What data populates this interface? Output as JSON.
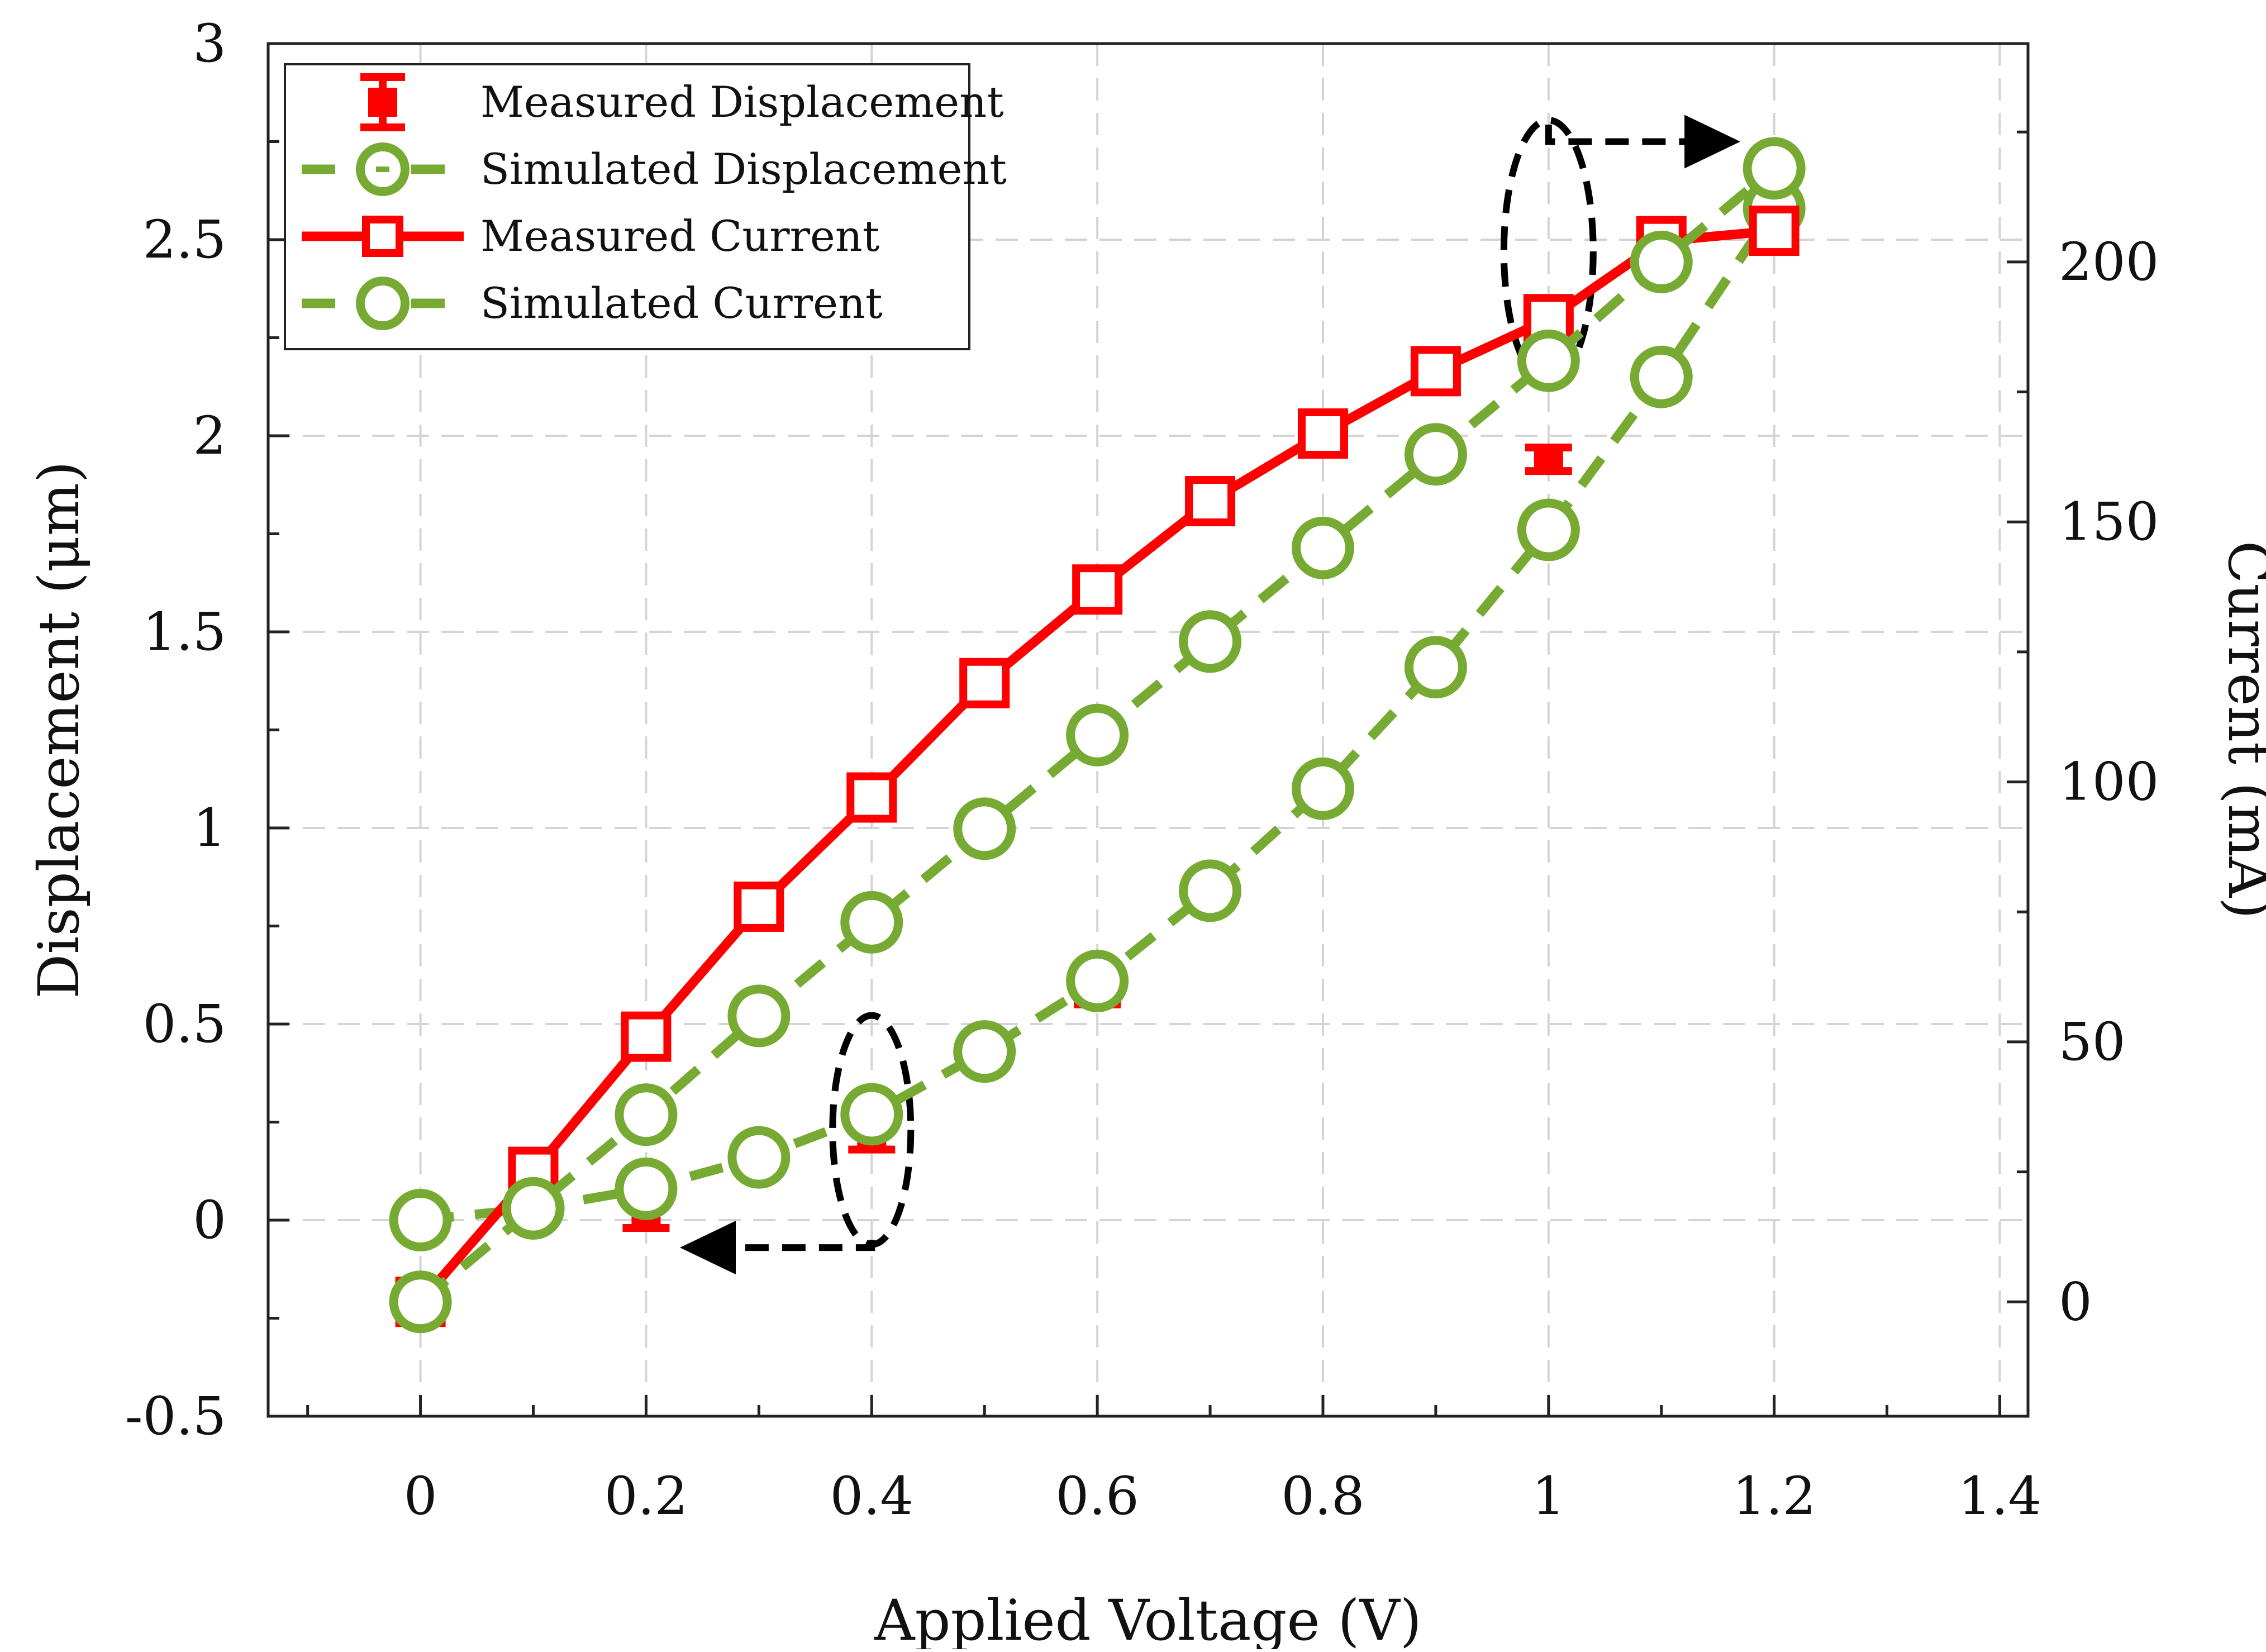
{
  "chart_data": {
    "type": "line",
    "title": "",
    "xlabel": "Applied Voltage (V)",
    "ylabel": "Displacement (μm)",
    "y2label": "Current (mA)",
    "xlim": [
      -0.135,
      1.425
    ],
    "ylim": [
      -0.5,
      3.0
    ],
    "y2lim": [
      -22,
      242
    ],
    "xticks": [
      0,
      0.2,
      0.4,
      0.6,
      0.8,
      1,
      1.2,
      1.4
    ],
    "xtick_labels": [
      "0",
      "0.2",
      "0.4",
      "0.6",
      "0.8",
      "1",
      "1.2",
      "1.4"
    ],
    "yticks": [
      -0.5,
      0,
      0.5,
      1,
      1.5,
      2,
      2.5,
      3
    ],
    "ytick_labels": [
      "-0.5",
      "0",
      "0.5",
      "1",
      "1.5",
      "2",
      "2.5",
      "3"
    ],
    "y2ticks": [
      0,
      50,
      100,
      150,
      200
    ],
    "y2tick_labels": [
      "0",
      "50",
      "100",
      "150",
      "200"
    ],
    "grid": true,
    "legend_position": "top-left",
    "series": [
      {
        "name": "Measured Displacement",
        "axis": "left",
        "style": "errorbar",
        "color": "#ff0000",
        "x": [
          0,
          0.2,
          0.4,
          0.6,
          0.8,
          1.0,
          1.2
        ],
        "y": [
          0.0,
          0.02,
          0.21,
          0.59,
          1.1,
          1.94,
          2.55
        ],
        "err": [
          0.02,
          0.04,
          0.03,
          0.04,
          0.03,
          0.03,
          0.06
        ]
      },
      {
        "name": "Simulated Displacement",
        "axis": "left",
        "style": "dashed-circle",
        "color": "#77aa33",
        "x": [
          0,
          0.1,
          0.2,
          0.3,
          0.4,
          0.5,
          0.6,
          0.7,
          0.8,
          0.9,
          1.0,
          1.1,
          1.2
        ],
        "y": [
          0.0,
          0.03,
          0.08,
          0.16,
          0.27,
          0.43,
          0.61,
          0.84,
          1.1,
          1.41,
          1.76,
          2.15,
          2.58
        ]
      },
      {
        "name": "Measured Current",
        "axis": "right",
        "style": "solid-square",
        "color": "#ff0000",
        "x": [
          0,
          0.1,
          0.2,
          0.3,
          0.4,
          0.5,
          0.6,
          0.7,
          0.8,
          0.9,
          1.0,
          1.1,
          1.2
        ],
        "y": [
          0,
          25,
          51,
          76,
          97,
          119,
          137,
          154,
          167,
          179,
          189,
          204,
          206
        ]
      },
      {
        "name": "Simulated Current",
        "axis": "right",
        "style": "dashed-circle",
        "color": "#77aa33",
        "x": [
          0,
          0.1,
          0.2,
          0.3,
          0.4,
          0.5,
          0.6,
          0.7,
          0.8,
          0.9,
          1.0,
          1.1,
          1.2
        ],
        "y": [
          0,
          18,
          36,
          55,
          73,
          91,
          109,
          127,
          145,
          163,
          181,
          200,
          218
        ]
      }
    ],
    "annotations": [
      {
        "kind": "ellipse-arrow",
        "cx": 0.4,
        "cy": 0.23,
        "target_axis": "left",
        "arrow_to": [
          0.23,
          -0.07
        ]
      },
      {
        "kind": "ellipse-arrow",
        "cx": 1.0,
        "cy": 2.47,
        "target_axis": "right",
        "arrow_to": [
          1.17,
          2.75
        ]
      }
    ]
  }
}
